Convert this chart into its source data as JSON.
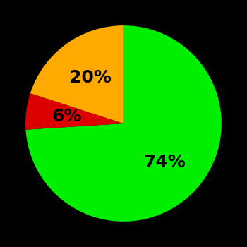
{
  "slices": [
    74,
    6,
    20
  ],
  "colors": [
    "#00ee00",
    "#dd0000",
    "#ffaa00"
  ],
  "labels": [
    "74%",
    "6%",
    "20%"
  ],
  "label_radii": [
    0.58,
    0.58,
    0.58
  ],
  "background_color": "#000000",
  "text_color": "#000000",
  "startangle": 90,
  "figsize": [
    3.5,
    3.5
  ],
  "dpi": 100
}
